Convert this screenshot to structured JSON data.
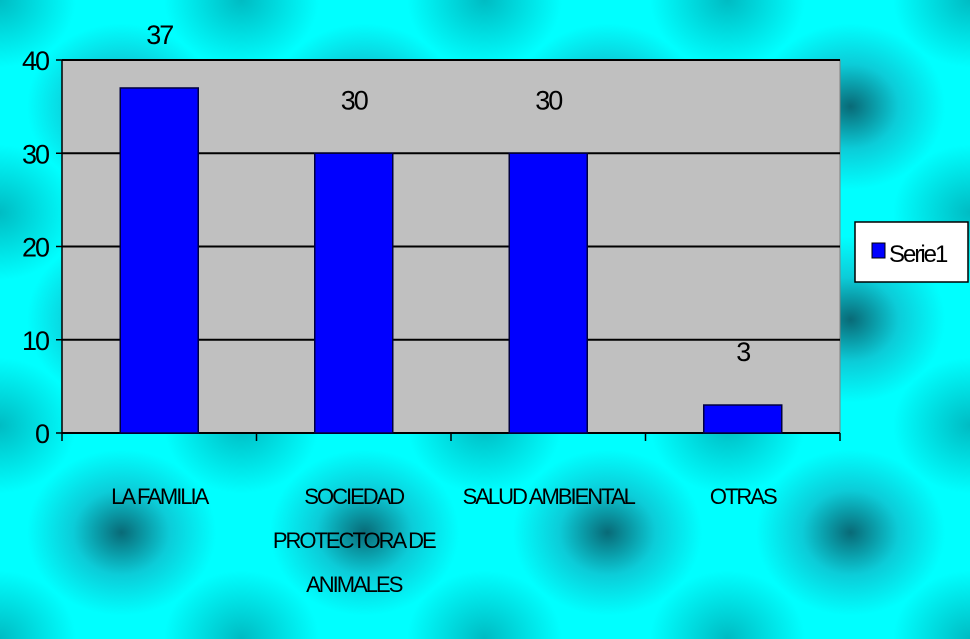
{
  "chart_data": {
    "type": "bar",
    "categories": [
      "LA FAMILIA",
      "SOCIEDAD PROTECTORA DE ANIMALES",
      "SALUD AMBIENTAL",
      "OTRAS"
    ],
    "series": [
      {
        "name": "Serie1",
        "color": "#0000ff",
        "values": [
          37,
          30,
          30,
          3
        ]
      }
    ],
    "ylim": [
      0,
      40
    ],
    "yticks": [
      0,
      10,
      20,
      30,
      40
    ],
    "grid": true,
    "legend": "right"
  }
}
